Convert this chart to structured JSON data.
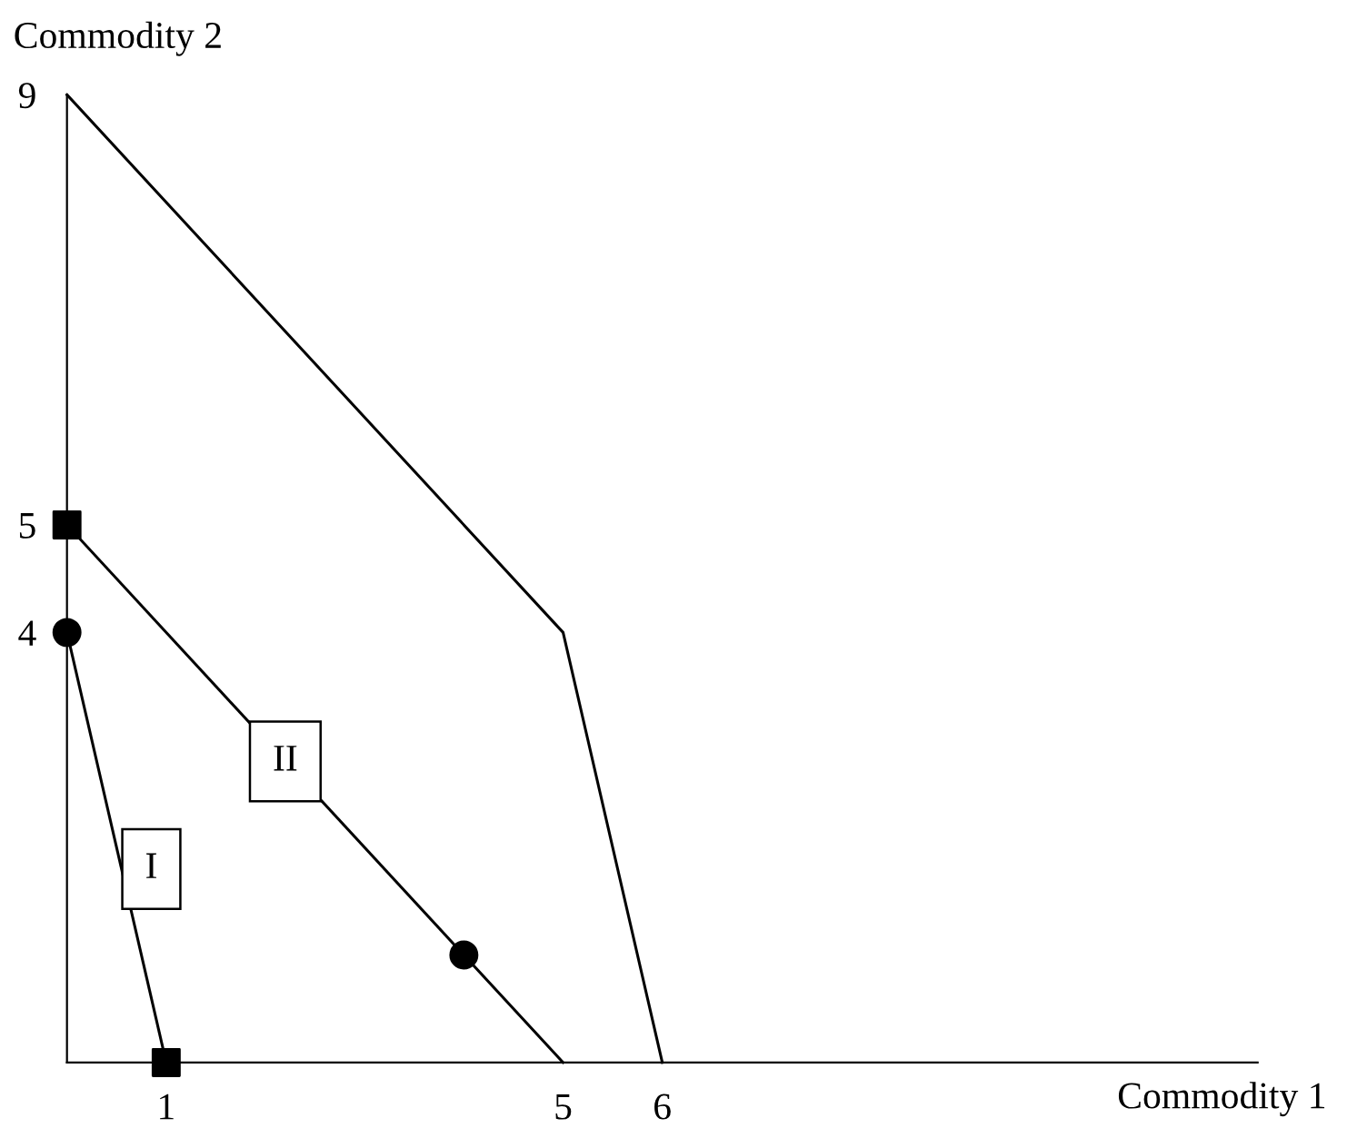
{
  "chart_data": {
    "type": "line",
    "xlabel": "Commodity 1",
    "ylabel": "Commodity 2",
    "xlim": [
      0,
      12
    ],
    "ylim": [
      0,
      9
    ],
    "xticks": [
      1,
      5,
      6
    ],
    "yticks": [
      4,
      5,
      9
    ],
    "grid": false,
    "legend": false,
    "series": [
      {
        "color": "#000000",
        "x": [
          0,
          1
        ],
        "values": [
          4,
          0
        ],
        "marker": "none"
      },
      {
        "color": "#000000",
        "x": [
          0,
          5
        ],
        "values": [
          5,
          0
        ],
        "marker": "none"
      },
      {
        "color": "#000000",
        "x": [
          0,
          5,
          6
        ],
        "values": [
          9,
          4,
          0
        ],
        "marker": "none"
      },
      {
        "type": "scatter",
        "color": "#000000",
        "x": [
          0,
          1
        ],
        "values": [
          5,
          0
        ],
        "marker": "square"
      },
      {
        "type": "scatter",
        "color": "#000000",
        "x": [
          0,
          4
        ],
        "values": [
          4,
          1
        ],
        "marker": "circle"
      }
    ],
    "annotations": [
      {
        "text": "I",
        "x": 0.85,
        "y": 1.8
      },
      {
        "text": "II",
        "x": 2.2,
        "y": 2.8
      }
    ]
  }
}
